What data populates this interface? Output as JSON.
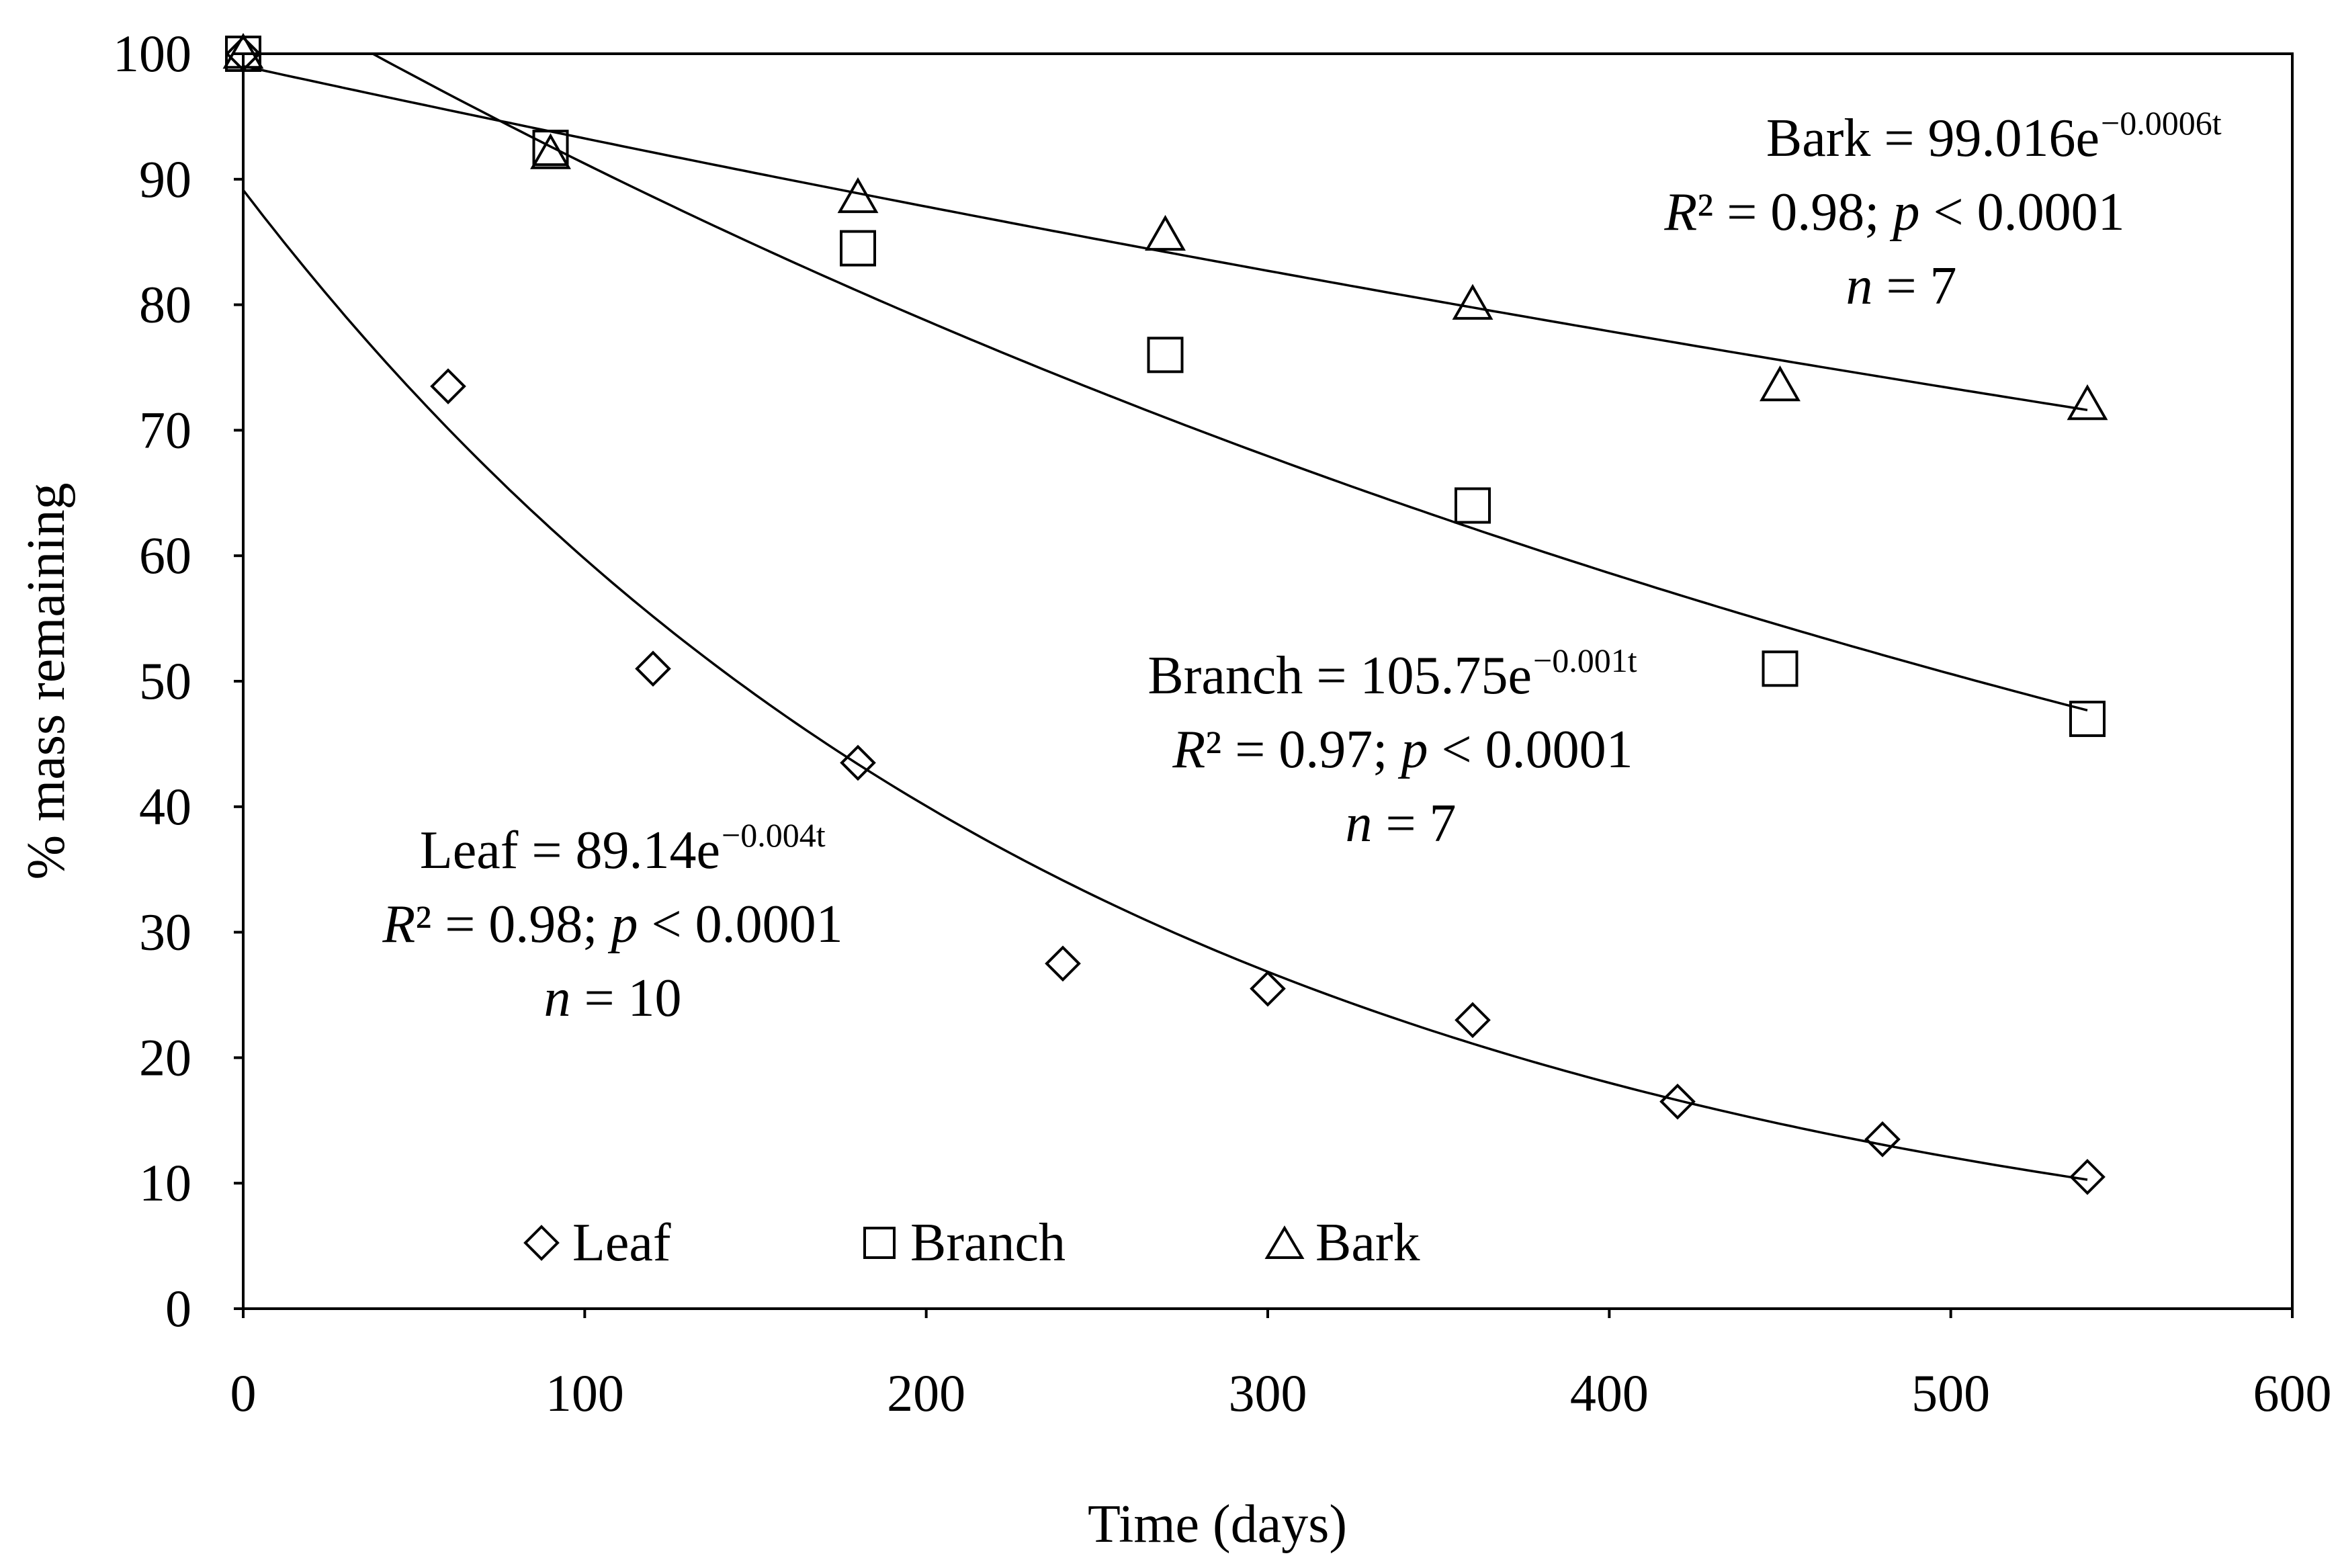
{
  "chart_data": {
    "type": "scatter",
    "title": "",
    "xlabel": "Time (days)",
    "ylabel": "% mass remaining",
    "xlim": [
      0,
      600
    ],
    "ylim": [
      0,
      100
    ],
    "xticks": [
      0,
      100,
      200,
      300,
      400,
      500,
      600
    ],
    "yticks": [
      0,
      10,
      20,
      30,
      40,
      50,
      60,
      70,
      80,
      90,
      100
    ],
    "legend": {
      "placement": "bottom-left",
      "entries": [
        "Leaf",
        "Branch",
        "Bark"
      ]
    },
    "series": [
      {
        "name": "Leaf",
        "marker": "diamond",
        "x": [
          0,
          60,
          120,
          180,
          240,
          300,
          360,
          420,
          480,
          540
        ],
        "y": [
          100,
          73.5,
          51,
          43.5,
          27.5,
          25.5,
          23,
          16.5,
          13.5,
          10.5
        ],
        "fit": {
          "a": 89.14,
          "b": 0.004
        },
        "equation": {
          "lhs": "Leaf = 89.14e",
          "exp": "−0.004t"
        },
        "stats": {
          "r2": "R",
          "r2_rest": "² = 0.98; ",
          "p": "p",
          "p_rest": " < 0.0001"
        },
        "n": {
          "label": "n",
          "value": " = 10"
        }
      },
      {
        "name": "Branch",
        "marker": "square",
        "x": [
          0,
          90,
          180,
          270,
          360,
          450,
          540
        ],
        "y": [
          100,
          92.5,
          84.5,
          76,
          64,
          51,
          47
        ],
        "fit": {
          "a": 105.75,
          "b": 0.001475
        },
        "equation": {
          "lhs": "Branch = 105.75e",
          "exp": "−0.001t"
        },
        "stats": {
          "r2": "R",
          "r2_rest": "² = 0.97; ",
          "p": "p",
          "p_rest": " < 0.0001"
        },
        "n": {
          "label": "n",
          "value": " = 7"
        }
      },
      {
        "name": "Bark",
        "marker": "triangle",
        "x": [
          0,
          90,
          180,
          270,
          360,
          450,
          540
        ],
        "y": [
          100,
          92,
          88.5,
          85.5,
          80,
          73.5,
          72
        ],
        "fit": {
          "a": 99.016,
          "b": 0.0006
        },
        "equation": {
          "lhs": "Bark = 99.016e",
          "exp": "−0.0006t"
        },
        "stats": {
          "r2": "R",
          "r2_rest": "² = 0.98; ",
          "p": "p",
          "p_rest": " < 0.0001"
        },
        "n": {
          "label": "n",
          "value": " = 7"
        }
      }
    ]
  }
}
